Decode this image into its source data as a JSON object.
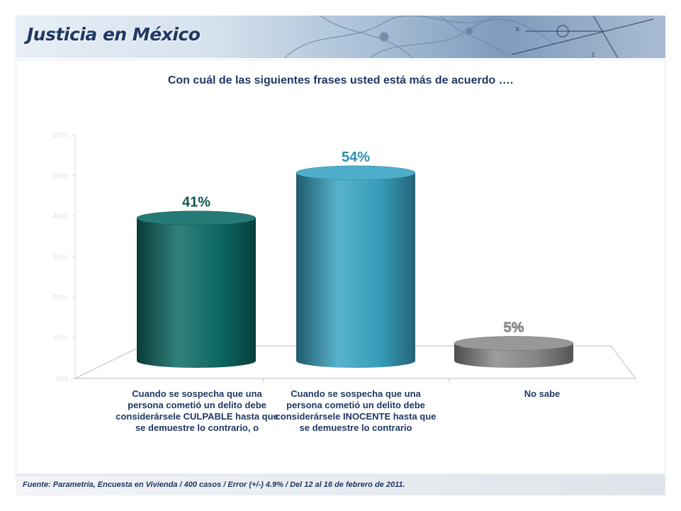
{
  "header": {
    "title": "Justicia en México"
  },
  "question": "Con cuál de las siguientes frases usted está más de acuerdo ….",
  "footer": {
    "source": "Fuente: Parametría, Encuesta en Vivienda / 400 casos / Error (+/-) 4.9% / Del 12 al 16 de febrero de 2011."
  },
  "chart_data": {
    "type": "bar",
    "categories": [
      "Cuando se sospecha que una persona cometió un delito debe considerársele CULPABLE hasta que se demuestre lo contrario, o",
      "Cuando se sospecha que una persona cometió un delito debe considerársele INOCENTE hasta que se demuestre lo contrario",
      "No sabe"
    ],
    "values": [
      41,
      54,
      5
    ],
    "data_labels": [
      "41%",
      "54%",
      "5%"
    ],
    "ylim": [
      0,
      60
    ],
    "yticks": [
      "0%",
      "10%",
      "20%",
      "30%",
      "40%",
      "50%",
      "60%"
    ],
    "colors": [
      "#0e6b66",
      "#3aa5c4",
      "#8c8c8c"
    ],
    "label_colors": [
      "#0e5a55",
      "#2f8fb0",
      "#9a9a9a"
    ]
  }
}
